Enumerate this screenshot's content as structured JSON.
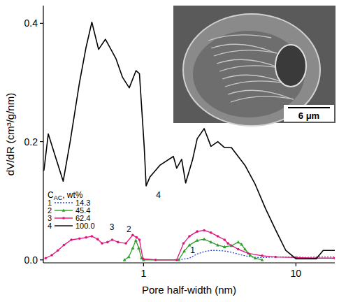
{
  "chart_data": {
    "type": "line",
    "x_label": "Pore half-width (nm)",
    "y_label": "dV/dR (cm³/g/nm)",
    "xlim": [
      0.22,
      18
    ],
    "ylim": [
      -0.005,
      0.43
    ],
    "xticks": [
      1,
      10
    ],
    "yticks": [
      {
        "value": 0,
        "label": "0.0"
      },
      {
        "value": 0.2,
        "label": "0.2"
      },
      {
        "value": 0.4,
        "label": "0.4"
      }
    ],
    "log": "x",
    "grid": false,
    "legend": "left",
    "legend_title": {
      "text": "C",
      "subscript": "AC",
      "suffix": ", wt%"
    },
    "series": [
      {
        "name": "14.3",
        "label": "1",
        "color": "#2b45d8",
        "line_style": "dotted",
        "marker": "none",
        "x": [
          1.7,
          2.0,
          2.25,
          2.5,
          2.77,
          3.07,
          3.4,
          3.77,
          4.18,
          4.63,
          5.4,
          6.31,
          7.35,
          8.58,
          10,
          11.7,
          13.6,
          16.4,
          18
        ],
        "values": [
          0,
          0.003,
          0.01,
          0.014,
          0.016,
          0.016,
          0.015,
          0.013,
          0.01,
          0.007,
          0.004,
          0.004,
          0.005,
          0.005,
          0.005,
          0.004,
          0.005,
          0.005,
          0.005
        ]
      },
      {
        "name": "45.4",
        "label": "2",
        "color": "#2ca02c",
        "line_style": "solid",
        "marker": "triangle",
        "x": [
          0.75,
          0.8,
          0.85,
          0.89,
          0.93,
          0.97,
          1.0,
          1.7,
          1.85,
          2.0,
          2.25,
          2.5,
          2.77,
          3.07,
          3.4,
          3.77,
          4.18,
          4.4,
          4.63,
          5.0,
          5.4,
          6.0
        ],
        "values": [
          0,
          0.005,
          0.02,
          0.033,
          0.02,
          0.003,
          0,
          0,
          0.015,
          0.025,
          0.033,
          0.035,
          0.03,
          0.025,
          0.022,
          0.024,
          0.03,
          0.026,
          0.018,
          0.008,
          0.003,
          0
        ]
      },
      {
        "name": "62.4",
        "label": "3",
        "color": "#e0147c",
        "line_style": "solid",
        "marker": "circle",
        "x": [
          0.228,
          0.25,
          0.274,
          0.3,
          0.336,
          0.38,
          0.42,
          0.458,
          0.5,
          0.534,
          0.58,
          0.623,
          0.68,
          0.766,
          0.849,
          0.9,
          0.94,
          0.99,
          1.2,
          1.65,
          1.83,
          2.0,
          2.25,
          2.5,
          2.77,
          3.07,
          3.4,
          3.58,
          4.18,
          4.87,
          6.0,
          7.35,
          10,
          13.6,
          18
        ],
        "values": [
          0.003,
          0.008,
          0.016,
          0.025,
          0.034,
          0.036,
          0.038,
          0.04,
          0.035,
          0.028,
          0.03,
          0.034,
          0.03,
          0.028,
          0.042,
          0.038,
          0.034,
          0.002,
          0,
          0,
          0.028,
          0.04,
          0.048,
          0.05,
          0.046,
          0.04,
          0.034,
          0.028,
          0.018,
          0.011,
          0.007,
          0.005,
          0.004,
          0.003,
          0.003
        ]
      },
      {
        "name": "100.0",
        "label": "4",
        "color": "#000000",
        "line_style": "solid",
        "marker": "none",
        "x": [
          0.222,
          0.237,
          0.26,
          0.297,
          0.33,
          0.38,
          0.42,
          0.458,
          0.507,
          0.562,
          0.611,
          0.66,
          0.727,
          0.806,
          0.893,
          0.94,
          1.01,
          1.04,
          1.1,
          1.28,
          1.57,
          1.65,
          1.78,
          1.89,
          2.1,
          2.25,
          2.5,
          2.77,
          3.07,
          3.4,
          3.77,
          4.18,
          4.63,
          5.4,
          6.31,
          7.35,
          8.58,
          10,
          11.7,
          13.6,
          15.1,
          18
        ],
        "values": [
          0.151,
          0.213,
          0.18,
          0.133,
          0.2,
          0.3,
          0.36,
          0.402,
          0.356,
          0.373,
          0.356,
          0.34,
          0.309,
          0.291,
          0.32,
          0.315,
          0.192,
          0.125,
          0.14,
          0.16,
          0.175,
          0.155,
          0.17,
          0.13,
          0.17,
          0.205,
          0.222,
          0.192,
          0.2,
          0.19,
          0.19,
          0.175,
          0.16,
          0.128,
          0.087,
          0.051,
          0.016,
          0.002,
          0.002,
          0.002,
          0.016,
          0.016
        ]
      }
    ],
    "annotations": [
      {
        "text": "1",
        "x": 2.1,
        "y": 0.012
      },
      {
        "text": "2",
        "x": 0.8,
        "y": 0.047
      },
      {
        "text": "3",
        "x": 0.62,
        "y": 0.05
      },
      {
        "text": "4",
        "x": 1.25,
        "y": 0.105
      }
    ],
    "inset": {
      "scale_label": "6 μm"
    }
  }
}
